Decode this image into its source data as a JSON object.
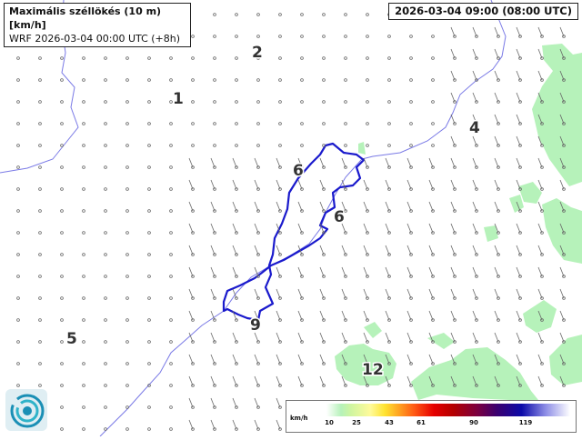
{
  "header": {
    "title": "Maximális széllökés (10 m) [km/h]",
    "subtitle": "WRF 2026-03-04 00:00 UTC (+8h)",
    "valid_time": "2026-03-04 09:00 (08:00 UTC)"
  },
  "legend": {
    "unit": "km/h",
    "ticks": [
      "10",
      "25",
      "43",
      "61",
      "90",
      "119"
    ]
  },
  "map": {
    "labels": [
      "2",
      "1",
      "4",
      "6",
      "6",
      "5",
      "9",
      "12"
    ]
  },
  "colors": {
    "region_outline": "#1a1acc",
    "river": "#7a7ae6",
    "gust_fill": "#b6f2ba",
    "wind_barb": "#666666"
  },
  "icons": {
    "logo": "met-service-logo-icon"
  }
}
